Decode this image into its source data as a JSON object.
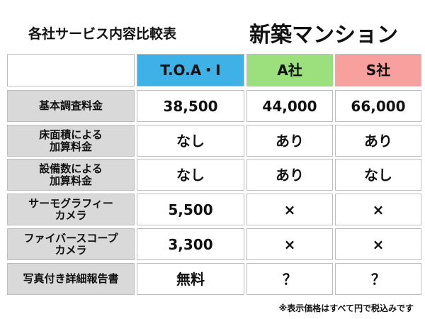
{
  "header": {
    "title": "各社サービス内容比較表",
    "subtitle": "新築マンション"
  },
  "table": {
    "columns": [
      {
        "name": "T.O.A・I",
        "color": "#3eb1e6"
      },
      {
        "name": "A社",
        "color": "#9be07c"
      },
      {
        "name": "S社",
        "color": "#f7a09e"
      }
    ],
    "rows": [
      [
        "基本調査料金",
        "38,500",
        "44,000",
        "66,000"
      ],
      [
        "床面積による\n加算料金",
        "なし",
        "あり",
        "あり"
      ],
      [
        "設備数による\n加算料金",
        "なし",
        "あり",
        "なし"
      ],
      [
        "サーモグラフィー\nカメラ",
        "5,500",
        "×",
        "×"
      ],
      [
        "ファイバースコープ\nカメラ",
        "3,300",
        "×",
        "×"
      ],
      [
        "写真付き詳細報告書",
        "無料",
        "？",
        "？"
      ]
    ]
  },
  "footnote": "※表示価格はすべて円で税込みです"
}
